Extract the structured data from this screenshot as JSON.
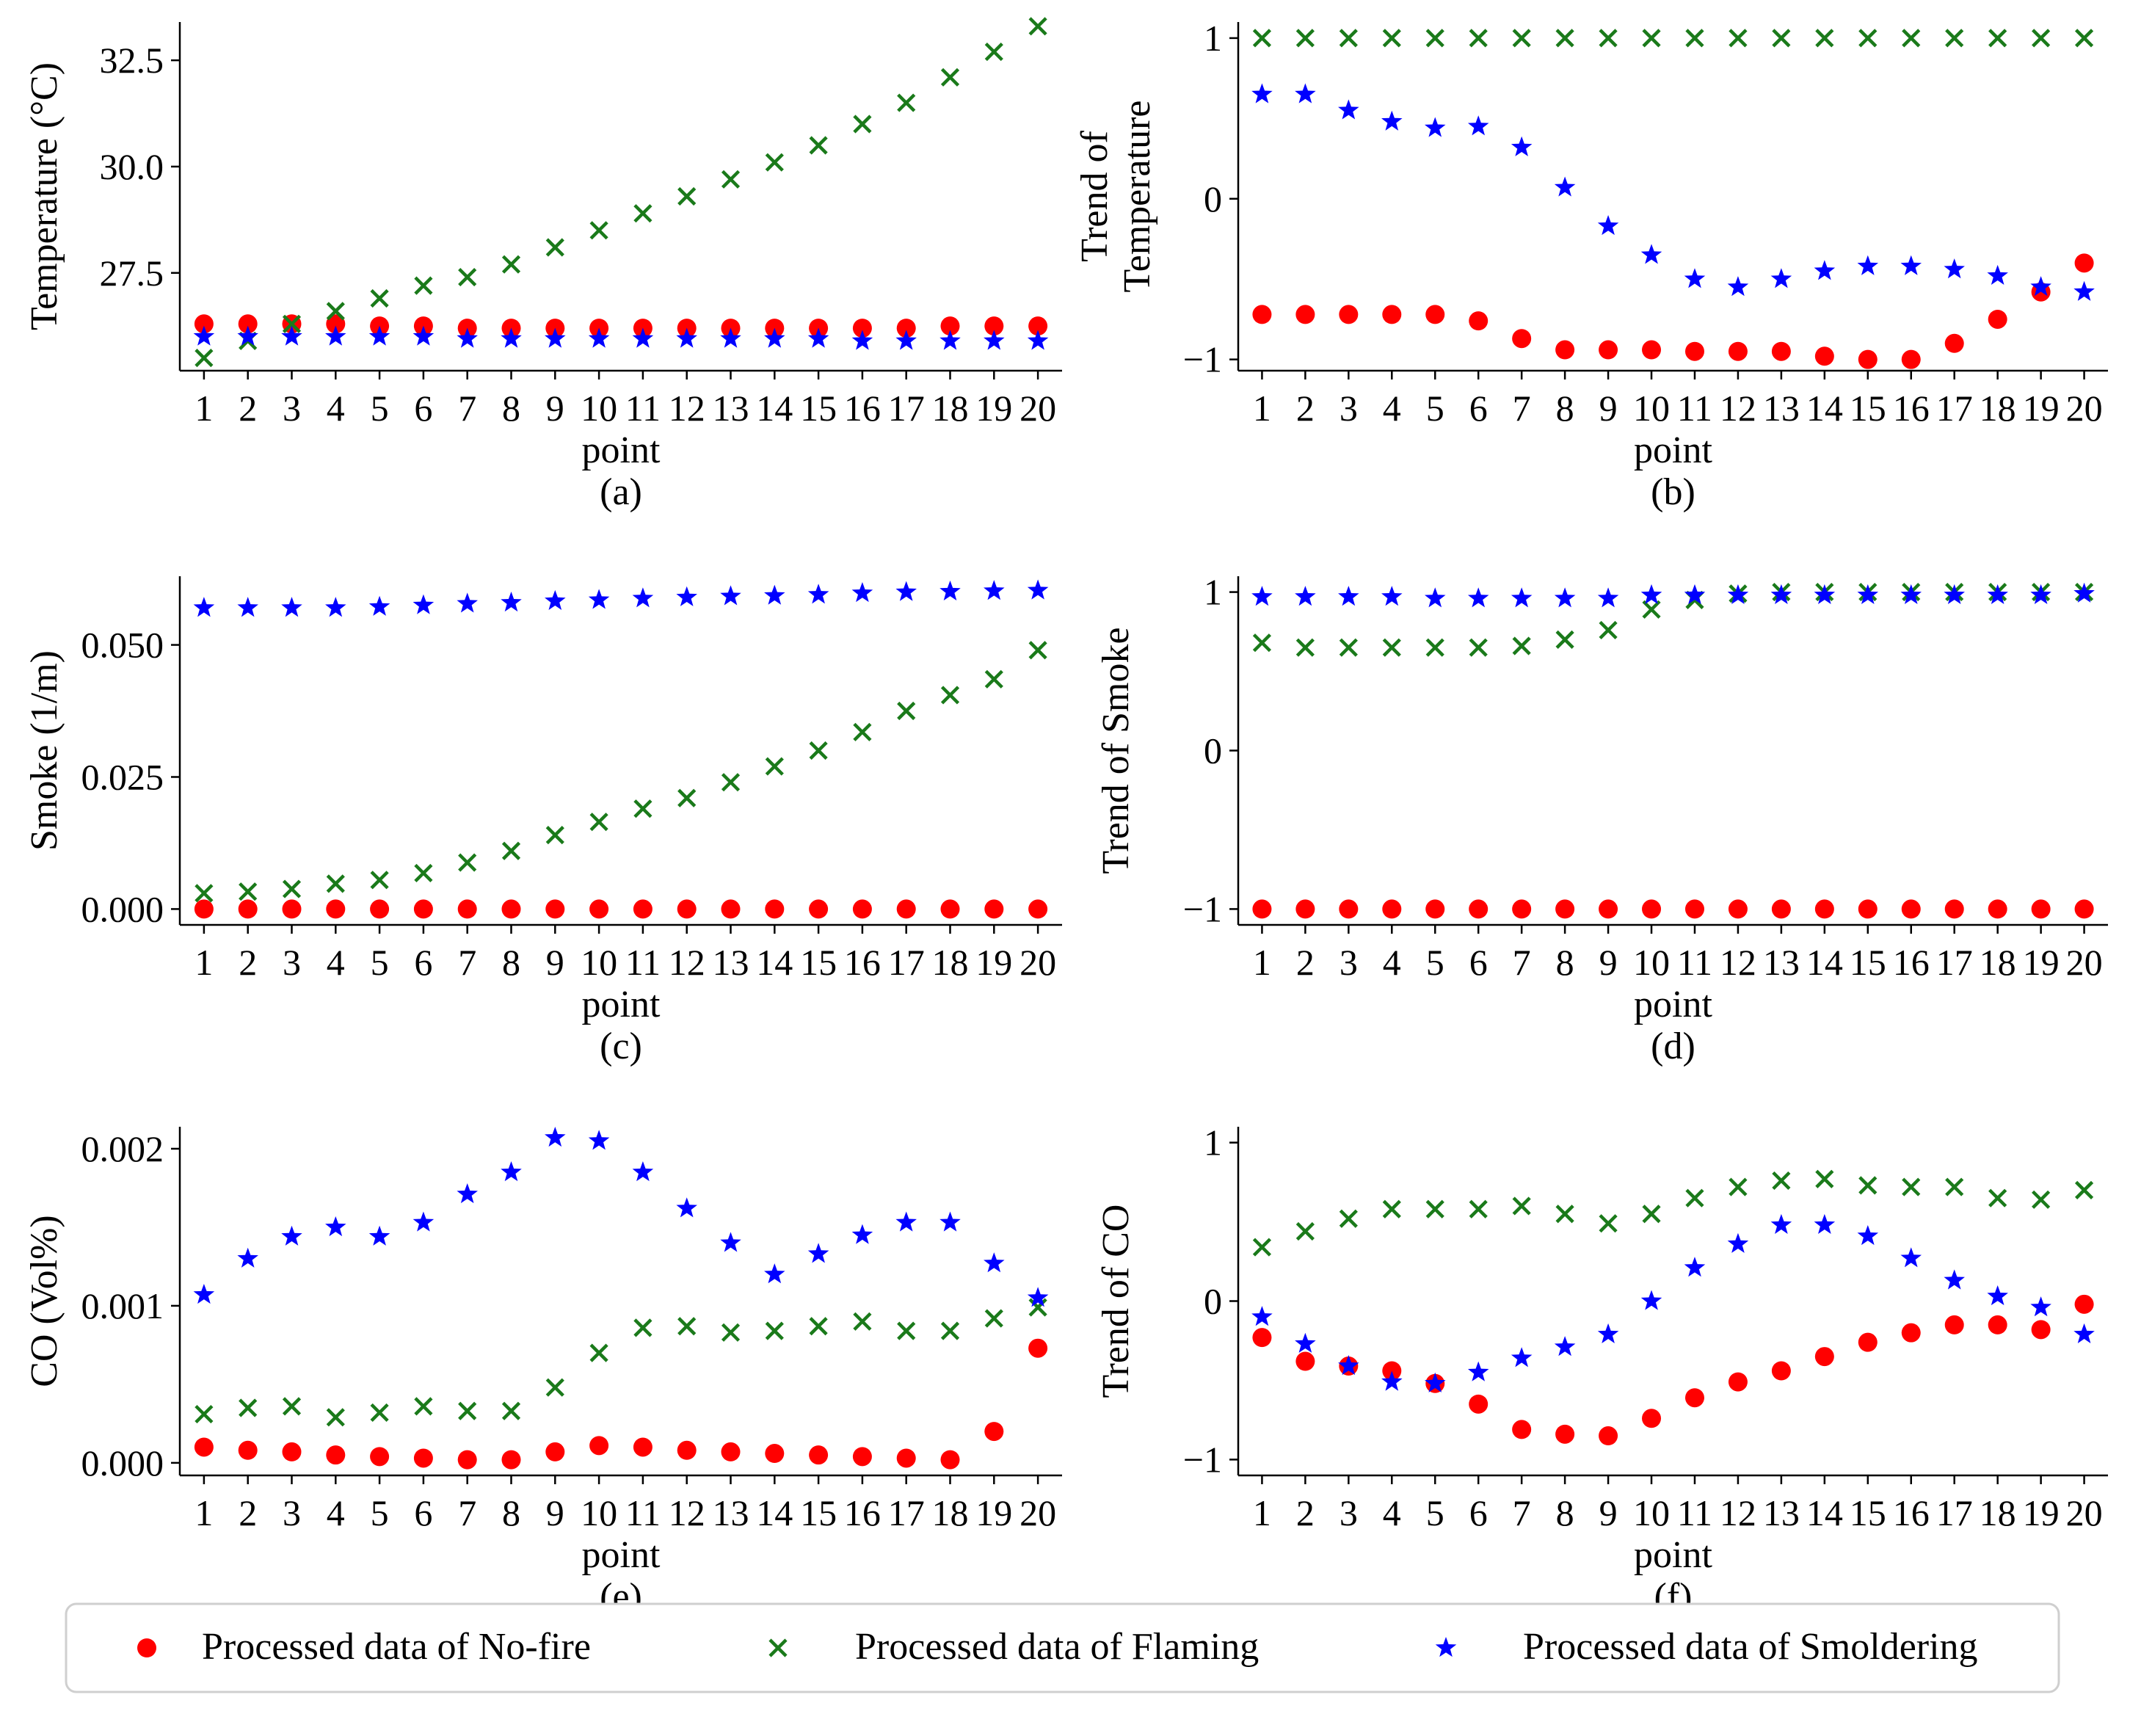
{
  "colors": {
    "nofire": "#ff0000",
    "flaming": "#1a7a1a",
    "smoldering": "#0000ff"
  },
  "legend": {
    "nofire": "Processed data of No-fire",
    "flaming": "Processed data of Flaming",
    "smoldering": "Processed data of Smoldering"
  },
  "chart_data": [
    {
      "type": "scatter",
      "caption": "(a)",
      "xlabel": "point",
      "ylabel": [
        "Temperature (°C)"
      ],
      "ylim": [
        25.2,
        33.4
      ],
      "yticks": [
        27.5,
        30.0,
        32.5
      ],
      "ytick_labels": [
        "27.5",
        "30.0",
        "32.5"
      ],
      "x": [
        1,
        2,
        3,
        4,
        5,
        6,
        7,
        8,
        9,
        10,
        11,
        12,
        13,
        14,
        15,
        16,
        17,
        18,
        19,
        20
      ],
      "series": [
        {
          "key": "nofire",
          "name": "Processed data of No-fire",
          "marker": "circle",
          "values": [
            26.3,
            26.3,
            26.3,
            26.3,
            26.25,
            26.25,
            26.2,
            26.2,
            26.2,
            26.2,
            26.2,
            26.2,
            26.2,
            26.2,
            26.2,
            26.2,
            26.2,
            26.25,
            26.25,
            26.25
          ]
        },
        {
          "key": "flaming",
          "name": "Processed data of Flaming",
          "marker": "x",
          "values": [
            25.5,
            25.9,
            26.3,
            26.6,
            26.9,
            27.2,
            27.4,
            27.7,
            28.1,
            28.5,
            28.9,
            29.3,
            29.7,
            30.1,
            30.5,
            31.0,
            31.5,
            32.1,
            32.7,
            33.3
          ]
        },
        {
          "key": "smoldering",
          "name": "Processed data of Smoldering",
          "marker": "star",
          "values": [
            26.0,
            26.0,
            26.0,
            26.0,
            26.0,
            26.0,
            25.95,
            25.95,
            25.95,
            25.95,
            25.95,
            25.95,
            25.95,
            25.95,
            25.95,
            25.9,
            25.9,
            25.9,
            25.9,
            25.9
          ]
        }
      ]
    },
    {
      "type": "scatter",
      "caption": "(b)",
      "xlabel": "point",
      "ylabel": [
        "Trend of",
        "Temperature"
      ],
      "ylim": [
        -1.07,
        1.1
      ],
      "yticks": [
        -1,
        0,
        1
      ],
      "ytick_labels": [
        "−1",
        "0",
        "1"
      ],
      "x": [
        1,
        2,
        3,
        4,
        5,
        6,
        7,
        8,
        9,
        10,
        11,
        12,
        13,
        14,
        15,
        16,
        17,
        18,
        19,
        20
      ],
      "series": [
        {
          "key": "nofire",
          "name": "Processed data of No-fire",
          "marker": "circle",
          "values": [
            -0.72,
            -0.72,
            -0.72,
            -0.72,
            -0.72,
            -0.76,
            -0.87,
            -0.94,
            -0.94,
            -0.94,
            -0.95,
            -0.95,
            -0.95,
            -0.98,
            -1.0,
            -1.0,
            -0.9,
            -0.75,
            -0.58,
            -0.4
          ]
        },
        {
          "key": "flaming",
          "name": "Processed data of Flaming",
          "marker": "x",
          "values": [
            1,
            1,
            1,
            1,
            1,
            1,
            1,
            1,
            1,
            1,
            1,
            1,
            1,
            1,
            1,
            1,
            1,
            1,
            1,
            1
          ]
        },
        {
          "key": "smoldering",
          "name": "Processed data of Smoldering",
          "marker": "star",
          "values": [
            0.65,
            0.65,
            0.55,
            0.48,
            0.44,
            0.45,
            0.32,
            0.07,
            -0.17,
            -0.35,
            -0.5,
            -0.55,
            -0.5,
            -0.45,
            -0.42,
            -0.42,
            -0.44,
            -0.48,
            -0.55,
            -0.58
          ]
        }
      ]
    },
    {
      "type": "scatter",
      "caption": "(c)",
      "xlabel": "point",
      "ylabel": [
        "Smoke (1/m)"
      ],
      "ylim": [
        -0.003,
        0.063
      ],
      "yticks": [
        0.0,
        0.025,
        0.05
      ],
      "ytick_labels": [
        "0.000",
        "0.025",
        "0.050"
      ],
      "x": [
        1,
        2,
        3,
        4,
        5,
        6,
        7,
        8,
        9,
        10,
        11,
        12,
        13,
        14,
        15,
        16,
        17,
        18,
        19,
        20
      ],
      "series": [
        {
          "key": "nofire",
          "name": "Processed data of No-fire",
          "marker": "circle",
          "values": [
            0,
            0,
            0,
            0,
            0,
            0,
            0,
            0,
            0,
            0,
            0,
            0,
            0,
            0,
            0,
            0,
            0,
            0,
            0,
            0
          ]
        },
        {
          "key": "flaming",
          "name": "Processed data of Flaming",
          "marker": "x",
          "values": [
            0.003,
            0.0033,
            0.0038,
            0.0048,
            0.0055,
            0.0068,
            0.0088,
            0.011,
            0.014,
            0.0165,
            0.019,
            0.021,
            0.024,
            0.027,
            0.03,
            0.0335,
            0.0375,
            0.0405,
            0.0435,
            0.049
          ]
        },
        {
          "key": "smoldering",
          "name": "Processed data of Smoldering",
          "marker": "star",
          "values": [
            0.057,
            0.057,
            0.057,
            0.057,
            0.0572,
            0.0575,
            0.0578,
            0.058,
            0.0583,
            0.0585,
            0.0588,
            0.059,
            0.0592,
            0.0593,
            0.0595,
            0.0598,
            0.06,
            0.0601,
            0.0602,
            0.0603
          ]
        }
      ]
    },
    {
      "type": "scatter",
      "caption": "(d)",
      "xlabel": "point",
      "ylabel": [
        "Trend of Smoke"
      ],
      "ylim": [
        -1.1,
        1.1
      ],
      "yticks": [
        -1,
        0,
        1
      ],
      "ytick_labels": [
        "−1",
        "0",
        "1"
      ],
      "x": [
        1,
        2,
        3,
        4,
        5,
        6,
        7,
        8,
        9,
        10,
        11,
        12,
        13,
        14,
        15,
        16,
        17,
        18,
        19,
        20
      ],
      "series": [
        {
          "key": "nofire",
          "name": "Processed data of No-fire",
          "marker": "circle",
          "values": [
            -1,
            -1,
            -1,
            -1,
            -1,
            -1,
            -1,
            -1,
            -1,
            -1,
            -1,
            -1,
            -1,
            -1,
            -1,
            -1,
            -1,
            -1,
            -1,
            -1
          ]
        },
        {
          "key": "flaming",
          "name": "Processed data of Flaming",
          "marker": "x",
          "values": [
            0.68,
            0.65,
            0.65,
            0.65,
            0.65,
            0.65,
            0.66,
            0.7,
            0.76,
            0.89,
            0.95,
            0.99,
            1.0,
            1.0,
            1.0,
            1.0,
            1.0,
            1.0,
            1.0,
            1.0
          ]
        },
        {
          "key": "smoldering",
          "name": "Processed data of Smoldering",
          "marker": "star",
          "values": [
            0.97,
            0.97,
            0.97,
            0.97,
            0.96,
            0.96,
            0.96,
            0.96,
            0.96,
            0.98,
            0.98,
            0.98,
            0.98,
            0.98,
            0.98,
            0.98,
            0.98,
            0.98,
            0.98,
            0.99
          ]
        }
      ]
    },
    {
      "type": "scatter",
      "caption": "(e)",
      "xlabel": "point",
      "ylabel": [
        "CO (Vol%)"
      ],
      "ylim": [
        -8e-05,
        0.00214
      ],
      "yticks": [
        0.0,
        0.001,
        0.002
      ],
      "ytick_labels": [
        "0.000",
        "0.001",
        "0.002"
      ],
      "x": [
        1,
        2,
        3,
        4,
        5,
        6,
        7,
        8,
        9,
        10,
        11,
        12,
        13,
        14,
        15,
        16,
        17,
        18,
        19,
        20
      ],
      "series": [
        {
          "key": "nofire",
          "name": "Processed data of No-fire",
          "marker": "circle",
          "values": [
            0.0001,
            8e-05,
            7e-05,
            5e-05,
            4e-05,
            3e-05,
            2e-05,
            2e-05,
            7e-05,
            0.00011,
            0.0001,
            8e-05,
            7e-05,
            6e-05,
            5e-05,
            4e-05,
            3e-05,
            2e-05,
            0.0002,
            0.00073
          ]
        },
        {
          "key": "flaming",
          "name": "Processed data of Flaming",
          "marker": "x",
          "values": [
            0.00031,
            0.00035,
            0.00036,
            0.00029,
            0.00032,
            0.00036,
            0.00033,
            0.00033,
            0.00048,
            0.0007,
            0.00086,
            0.00087,
            0.00083,
            0.00084,
            0.00087,
            0.0009,
            0.00084,
            0.00084,
            0.00092,
            0.00099
          ]
        },
        {
          "key": "smoldering",
          "name": "Processed data of Smoldering",
          "marker": "star",
          "values": [
            0.00107,
            0.0013,
            0.00144,
            0.0015,
            0.00144,
            0.00153,
            0.00171,
            0.00185,
            0.00207,
            0.00205,
            0.00185,
            0.00162,
            0.0014,
            0.0012,
            0.00133,
            0.00145,
            0.00153,
            0.00153,
            0.00127,
            0.00105
          ]
        }
      ]
    },
    {
      "type": "scatter",
      "caption": "(f)",
      "xlabel": "point",
      "ylabel": [
        "Trend of CO"
      ],
      "ylim": [
        -1.1,
        1.1
      ],
      "yticks": [
        -1,
        0,
        1
      ],
      "ytick_labels": [
        "−1",
        "0",
        "1"
      ],
      "x": [
        1,
        2,
        3,
        4,
        5,
        6,
        7,
        8,
        9,
        10,
        11,
        12,
        13,
        14,
        15,
        16,
        17,
        18,
        19,
        20
      ],
      "series": [
        {
          "key": "nofire",
          "name": "Processed data of No-fire",
          "marker": "circle",
          "values": [
            -0.23,
            -0.38,
            -0.41,
            -0.44,
            -0.52,
            -0.65,
            -0.81,
            -0.84,
            -0.85,
            -0.74,
            -0.61,
            -0.51,
            -0.44,
            -0.35,
            -0.26,
            -0.2,
            -0.15,
            -0.15,
            -0.18,
            -0.02
          ]
        },
        {
          "key": "flaming",
          "name": "Processed data of Flaming",
          "marker": "x",
          "values": [
            0.34,
            0.44,
            0.52,
            0.58,
            0.58,
            0.58,
            0.6,
            0.55,
            0.49,
            0.55,
            0.65,
            0.72,
            0.76,
            0.77,
            0.73,
            0.72,
            0.72,
            0.65,
            0.64,
            0.7
          ]
        },
        {
          "key": "smoldering",
          "name": "Processed data of Smoldering",
          "marker": "star",
          "values": [
            -0.1,
            -0.27,
            -0.41,
            -0.51,
            -0.52,
            -0.45,
            -0.36,
            -0.29,
            -0.21,
            0.0,
            0.21,
            0.36,
            0.48,
            0.48,
            0.41,
            0.27,
            0.13,
            0.03,
            -0.04,
            -0.21
          ]
        }
      ]
    }
  ]
}
